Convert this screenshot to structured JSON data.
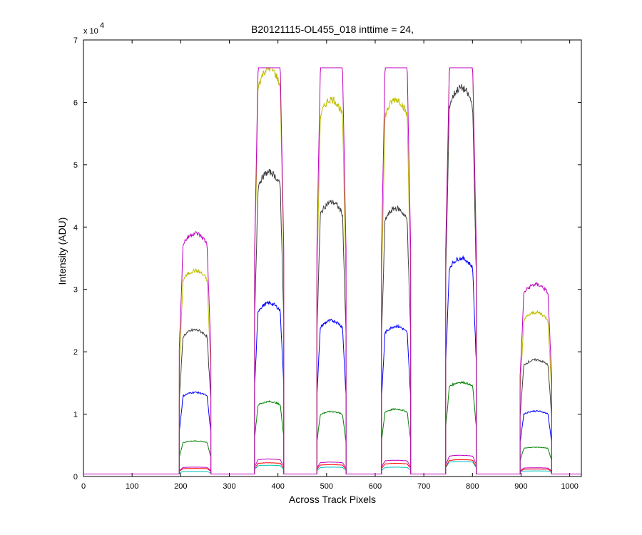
{
  "chart_data": {
    "type": "line",
    "title": "B20121115-OL455_018 inttime = 24,",
    "xlabel": "Across Track Pixels",
    "ylabel": "Intensity (ADU)",
    "exponent_label": "x 10",
    "exponent_power": "4",
    "xlim": [
      0,
      1024
    ],
    "ylim": [
      0,
      70000
    ],
    "xticks": [
      0,
      100,
      200,
      300,
      400,
      500,
      600,
      700,
      800,
      900,
      1000
    ],
    "yticks": [
      0,
      10000,
      20000,
      30000,
      40000,
      50000,
      60000,
      70000
    ],
    "ytick_labels": [
      "0",
      "1",
      "2",
      "3",
      "4",
      "5",
      "6",
      "7"
    ],
    "grid": false,
    "legend": "none",
    "baseline": 400,
    "segments": [
      {
        "start": 197,
        "end": 262
      },
      {
        "start": 352,
        "end": 412
      },
      {
        "start": 480,
        "end": 540
      },
      {
        "start": 613,
        "end": 673
      },
      {
        "start": 745,
        "end": 808
      },
      {
        "start": 898,
        "end": 963
      }
    ],
    "series": [
      {
        "color": "#00bfbf",
        "levels": [
          800,
          1800,
          1500,
          1500,
          2400,
          900
        ]
      },
      {
        "color": "#ff0000",
        "levels": [
          1300,
          2200,
          1900,
          2100,
          2700,
          1200
        ]
      },
      {
        "color": "#bf00bf",
        "levels": [
          1500,
          2800,
          2300,
          2600,
          3400,
          1400
        ]
      },
      {
        "color": "#008000",
        "levels": [
          5700,
          12000,
          10400,
          10800,
          15100,
          4700
        ]
      },
      {
        "color": "#0000ff",
        "levels": [
          13500,
          27800,
          25000,
          24100,
          35000,
          10500
        ]
      },
      {
        "color": "#404040",
        "levels": [
          23500,
          48800,
          44000,
          43000,
          62300,
          18700
        ]
      },
      {
        "color": "#bfbf00",
        "levels": [
          33000,
          65500,
          60500,
          60500,
          65535,
          26300
        ]
      },
      {
        "color": "#bf00bf",
        "levels": [
          39000,
          65535,
          65535,
          65535,
          65535,
          30800
        ]
      }
    ]
  }
}
